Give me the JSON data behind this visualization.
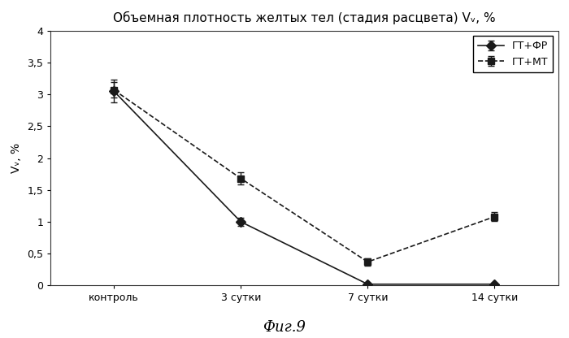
{
  "title": "Объемная плотность желтых тел (стадия расцвета) Vᵥ, %",
  "xlabel_categories": [
    "контроль",
    "3 сутки",
    "7 сутки",
    "14 сутки"
  ],
  "ylabel": "Vᵥ, %",
  "caption": "Фиг.9",
  "series1_label": "ГТ+ФР",
  "series2_label": "ГТ+МТ",
  "series1_values": [
    3.05,
    1.0,
    0.02,
    0.02
  ],
  "series2_values": [
    3.07,
    1.68,
    0.37,
    1.08
  ],
  "series1_errors": [
    0.18,
    0.06,
    0.02,
    0.02
  ],
  "series2_errors": [
    0.12,
    0.1,
    0.06,
    0.07
  ],
  "ylim": [
    0,
    4.0
  ],
  "yticks": [
    0,
    0.5,
    1.0,
    1.5,
    2.0,
    2.5,
    3.0,
    3.5,
    4.0
  ],
  "ytick_labels": [
    "0",
    "0,5",
    "1",
    "1,5",
    "2",
    "2,5",
    "3",
    "3,5",
    "4"
  ],
  "line_color": "#1a1a1a",
  "bg_color": "#ffffff",
  "marker1": "D",
  "marker2": "s",
  "markersize": 6,
  "title_fontsize": 11,
  "label_fontsize": 10,
  "tick_fontsize": 9,
  "caption_fontsize": 13,
  "legend_fontsize": 9
}
